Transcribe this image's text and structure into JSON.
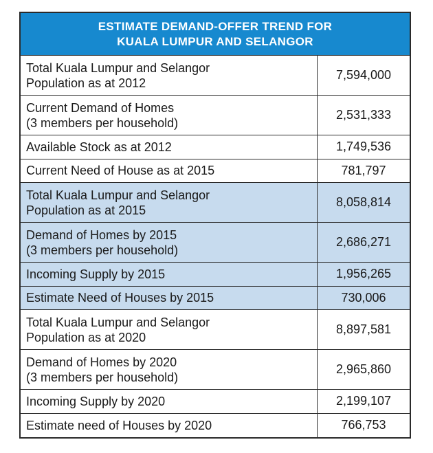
{
  "title": {
    "line1": "ESTIMATE DEMAND-OFFER TREND FOR",
    "line2": "KUALA LUMPUR AND SELANGOR"
  },
  "colors": {
    "header_bg": "#1789cf",
    "shaded_row_bg": "#c7dbee",
    "border": "#2a2a2a"
  },
  "rows": [
    {
      "line1": "Total Kuala Lumpur and Selangor",
      "line2": "Population as at 2012",
      "value": "7,594,000",
      "shaded": false
    },
    {
      "line1": "Current Demand of Homes",
      "line2": "(3 members per household)",
      "value": "2,531,333",
      "shaded": false
    },
    {
      "line1": "Available Stock as at 2012",
      "line2": "",
      "value": "1,749,536",
      "shaded": false
    },
    {
      "line1": "Current Need of House as at 2015",
      "line2": "",
      "value": "781,797",
      "shaded": false
    },
    {
      "line1": "Total Kuala Lumpur and Selangor",
      "line2": "Population as at 2015",
      "value": "8,058,814",
      "shaded": true
    },
    {
      "line1": "Demand of Homes by 2015",
      "line2": "(3 members per household)",
      "value": "2,686,271",
      "shaded": true
    },
    {
      "line1": "Incoming Supply by 2015",
      "line2": "",
      "value": "1,956,265",
      "shaded": true
    },
    {
      "line1": "Estimate Need of Houses by 2015",
      "line2": "",
      "value": "730,006",
      "shaded": true
    },
    {
      "line1": "Total Kuala Lumpur and Selangor",
      "line2": "Population as at 2020",
      "value": "8,897,581",
      "shaded": false
    },
    {
      "line1": "Demand of Homes by 2020",
      "line2": "(3 members per household)",
      "value": "2,965,860",
      "shaded": false
    },
    {
      "line1": "Incoming Supply by 2020",
      "line2": "",
      "value": "2,199,107",
      "shaded": false
    },
    {
      "line1": "Estimate need of Houses by 2020",
      "line2": "",
      "value": "766,753",
      "shaded": false
    }
  ]
}
